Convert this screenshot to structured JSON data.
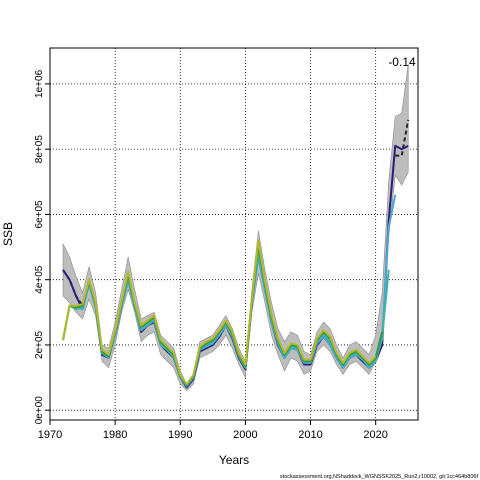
{
  "chart_data": {
    "type": "line",
    "xlabel": "Years",
    "ylabel": "SSB",
    "xlim": [
      1970,
      2026.5
    ],
    "ylim": [
      -30000,
      1110000
    ],
    "grid": true,
    "x_ticks": [
      1970,
      1980,
      1990,
      2000,
      2010,
      2020
    ],
    "y_ticks": [
      0,
      200000,
      400000,
      600000,
      800000,
      1000000
    ],
    "y_tick_labels": [
      "0e+00",
      "2e+05",
      "4e+05",
      "6e+05",
      "8e+05",
      "1e+06"
    ],
    "annotation": "-0.14",
    "footer": "stockassessment.org,NShaddock_WGNSSK2025_Run2,r10002, git:1cc464b806f",
    "band": {
      "x": [
        1972,
        1973,
        1974,
        1975,
        1976,
        1977,
        1978,
        1979,
        1980,
        1981,
        1982,
        1983,
        1984,
        1985,
        1986,
        1987,
        1988,
        1989,
        1990,
        1991,
        1992,
        1993,
        1994,
        1995,
        1996,
        1997,
        1998,
        1999,
        2000,
        2001,
        2002,
        2003,
        2004,
        2005,
        2006,
        2007,
        2008,
        2009,
        2010,
        2011,
        2012,
        2013,
        2014,
        2015,
        2016,
        2017,
        2018,
        2019,
        2020,
        2021,
        2022,
        2023,
        2024,
        2025
      ],
      "upper": [
        510000,
        470000,
        410000,
        360000,
        440000,
        360000,
        200000,
        190000,
        270000,
        370000,
        470000,
        370000,
        280000,
        290000,
        300000,
        230000,
        210000,
        190000,
        120000,
        80000,
        110000,
        210000,
        220000,
        230000,
        260000,
        290000,
        250000,
        190000,
        150000,
        370000,
        550000,
        430000,
        330000,
        250000,
        210000,
        240000,
        230000,
        180000,
        170000,
        240000,
        270000,
        250000,
        200000,
        160000,
        200000,
        210000,
        190000,
        170000,
        230000,
        360000,
        700000,
        900000,
        910000,
        1060000
      ],
      "lower": [
        350000,
        330000,
        300000,
        280000,
        340000,
        290000,
        150000,
        130000,
        200000,
        300000,
        370000,
        300000,
        210000,
        230000,
        240000,
        170000,
        150000,
        130000,
        80000,
        60000,
        80000,
        160000,
        170000,
        180000,
        200000,
        230000,
        190000,
        140000,
        100000,
        300000,
        420000,
        330000,
        230000,
        170000,
        120000,
        160000,
        150000,
        110000,
        120000,
        180000,
        200000,
        180000,
        140000,
        110000,
        140000,
        150000,
        130000,
        110000,
        150000,
        250000,
        530000,
        720000,
        690000,
        730000
      ]
    },
    "series": [
      {
        "x": [
          1972,
          1973,
          1974,
          1975
        ],
        "values": [
          430000,
          400000,
          350000,
          320000
        ],
        "color": "#222222",
        "dashed": true,
        "width": 2
      },
      {
        "x": [
          2023,
          2024,
          2025
        ],
        "values": [
          780000,
          780000,
          890000
        ],
        "color": "#222222",
        "dashed": true,
        "width": 2
      },
      {
        "x": [
          1972,
          1973,
          1974,
          1975,
          1976,
          1977,
          1978,
          1979,
          1980,
          1981,
          1982,
          1983,
          1984,
          1985,
          1986,
          1987,
          1988,
          1989,
          1990,
          1991,
          1992,
          1993,
          1994,
          1995,
          1996,
          1997,
          1998,
          1999,
          2000,
          2001,
          2002,
          2003,
          2004,
          2005,
          2006,
          2007,
          2008,
          2009,
          2010,
          2011,
          2012,
          2013,
          2014,
          2015,
          2016,
          2017,
          2018,
          2019,
          2020,
          2021,
          2022,
          2023,
          2024,
          2025
        ],
        "values": [
          430000,
          400000,
          350000,
          310000,
          390000,
          320000,
          170000,
          160000,
          230000,
          320000,
          400000,
          320000,
          240000,
          260000,
          270000,
          200000,
          180000,
          160000,
          100000,
          70000,
          95000,
          180000,
          190000,
          200000,
          225000,
          260000,
          220000,
          160000,
          125000,
          330000,
          480000,
          370000,
          270000,
          200000,
          160000,
          190000,
          185000,
          140000,
          140000,
          200000,
          225000,
          200000,
          160000,
          130000,
          160000,
          170000,
          150000,
          130000,
          150000,
          200000,
          580000,
          810000,
          800000,
          810000
        ],
        "color": "#2a1f7a",
        "dashed": false,
        "width": 2
      },
      {
        "x": [
          1972,
          1973,
          1974,
          1975,
          1976,
          1977,
          1978,
          1979,
          1980,
          1981,
          1982,
          1983,
          1984,
          1985,
          1986,
          1987,
          1988,
          1989,
          1990,
          1991,
          1992,
          1993,
          1994,
          1995,
          1996,
          1997,
          1998,
          1999,
          2000,
          2001,
          2002,
          2003,
          2004,
          2005,
          2006,
          2007,
          2008,
          2009,
          2010,
          2011,
          2012,
          2013,
          2014,
          2015,
          2016,
          2017,
          2018,
          2019,
          2020,
          2021,
          2022,
          2023
        ],
        "values": [
          215000,
          320000,
          315000,
          310000,
          385000,
          315000,
          175000,
          160000,
          230000,
          320000,
          395000,
          315000,
          245000,
          260000,
          275000,
          200000,
          185000,
          160000,
          100000,
          75000,
          100000,
          185000,
          195000,
          205000,
          230000,
          260000,
          225000,
          165000,
          130000,
          330000,
          470000,
          365000,
          270000,
          205000,
          160000,
          190000,
          185000,
          145000,
          145000,
          205000,
          225000,
          200000,
          160000,
          130000,
          160000,
          170000,
          155000,
          130000,
          150000,
          220000,
          560000,
          660000
        ],
        "color": "#4aa8d8",
        "dashed": false,
        "width": 2
      },
      {
        "x": [
          1972,
          1973,
          1974,
          1975,
          1976,
          1977,
          1978,
          1979,
          1980,
          1981,
          1982,
          1983,
          1984,
          1985,
          1986,
          1987,
          1988,
          1989,
          1990,
          1991,
          1992,
          1993,
          1994,
          1995,
          1996,
          1997,
          1998,
          1999,
          2000,
          2001,
          2002,
          2003,
          2004,
          2005,
          2006,
          2007,
          2008,
          2009,
          2010,
          2011,
          2012,
          2013,
          2014,
          2015,
          2016,
          2017,
          2018,
          2019,
          2020,
          2021,
          2022
        ],
        "values": [
          215000,
          320000,
          310000,
          315000,
          390000,
          320000,
          175000,
          165000,
          235000,
          325000,
          405000,
          320000,
          250000,
          265000,
          280000,
          205000,
          185000,
          165000,
          100000,
          75000,
          100000,
          185000,
          200000,
          210000,
          235000,
          265000,
          230000,
          165000,
          130000,
          335000,
          490000,
          375000,
          275000,
          210000,
          165000,
          195000,
          190000,
          150000,
          150000,
          210000,
          235000,
          210000,
          165000,
          135000,
          165000,
          175000,
          160000,
          135000,
          155000,
          225000,
          430000
        ],
        "color": "#3ab5a0",
        "dashed": false,
        "width": 2
      },
      {
        "x": [
          1972,
          1973,
          1974,
          1975,
          1976,
          1977,
          1978,
          1979,
          1980,
          1981,
          1982,
          1983,
          1984,
          1985,
          1986,
          1987,
          1988,
          1989,
          1990,
          1991,
          1992,
          1993,
          1994,
          1995,
          1996,
          1997,
          1998,
          1999,
          2000,
          2001,
          2002,
          2003,
          2004,
          2005,
          2006,
          2007,
          2008,
          2009,
          2010,
          2011,
          2012,
          2013,
          2014,
          2015,
          2016,
          2017,
          2018,
          2019,
          2020,
          2021
        ],
        "values": [
          215000,
          320000,
          315000,
          320000,
          395000,
          325000,
          180000,
          165000,
          240000,
          330000,
          415000,
          325000,
          255000,
          270000,
          285000,
          210000,
          190000,
          170000,
          105000,
          78000,
          105000,
          190000,
          205000,
          215000,
          240000,
          270000,
          235000,
          170000,
          135000,
          340000,
          505000,
          385000,
          285000,
          215000,
          170000,
          200000,
          195000,
          150000,
          150000,
          215000,
          240000,
          220000,
          170000,
          140000,
          170000,
          180000,
          160000,
          140000,
          160000,
          240000
        ],
        "color": "#2e9a3a",
        "dashed": false,
        "width": 2
      },
      {
        "x": [
          1972,
          1973,
          1974,
          1975,
          1976,
          1977,
          1978,
          1979,
          1980,
          1981,
          1982,
          1983,
          1984,
          1985,
          1986,
          1987,
          1988,
          1989,
          1990,
          1991,
          1992,
          1993,
          1994,
          1995,
          1996,
          1997,
          1998,
          1999,
          2000,
          2001,
          2002,
          2003,
          2004,
          2005,
          2006,
          2007,
          2008,
          2009,
          2010,
          2011,
          2012,
          2013,
          2014,
          2015,
          2016,
          2017,
          2018,
          2019,
          2020
        ],
        "values": [
          215000,
          320000,
          320000,
          325000,
          400000,
          330000,
          185000,
          170000,
          245000,
          335000,
          425000,
          330000,
          260000,
          275000,
          290000,
          215000,
          195000,
          175000,
          108000,
          80000,
          108000,
          195000,
          210000,
          220000,
          245000,
          275000,
          240000,
          175000,
          140000,
          345000,
          520000,
          395000,
          295000,
          220000,
          175000,
          205000,
          200000,
          155000,
          155000,
          220000,
          245000,
          225000,
          175000,
          145000,
          175000,
          185000,
          165000,
          145000,
          165000
        ],
        "color": "#b5b82a",
        "dashed": false,
        "width": 2
      }
    ]
  }
}
